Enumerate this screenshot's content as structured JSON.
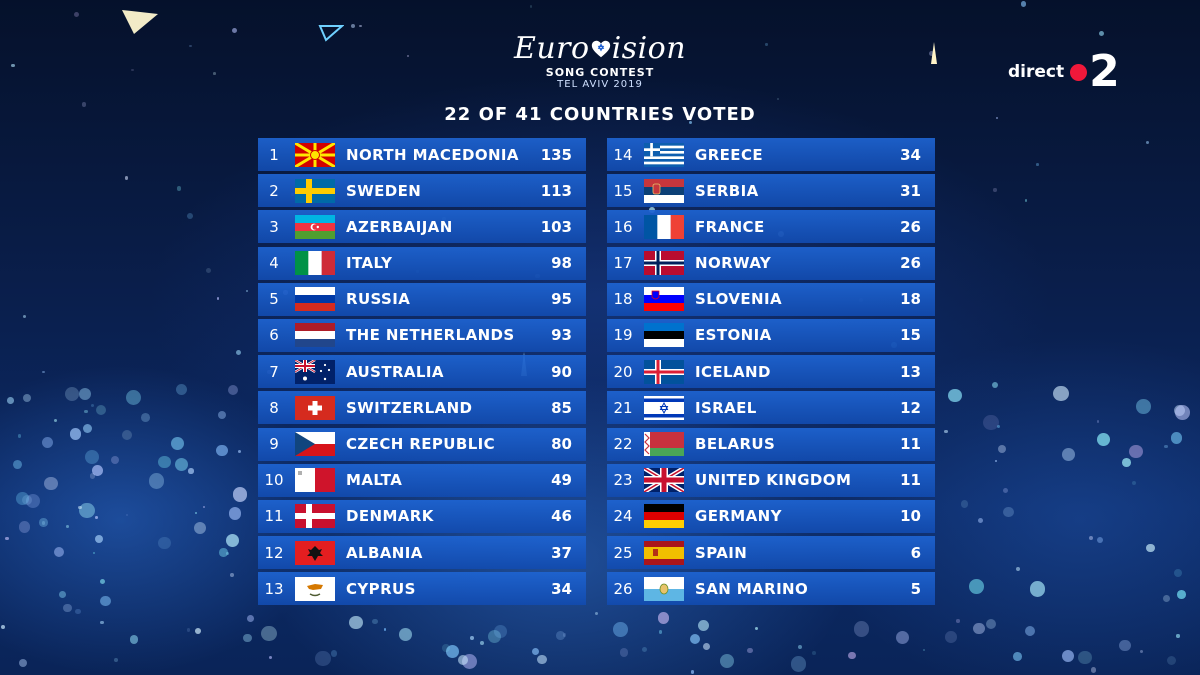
{
  "logo": {
    "brand": "EUROVISION",
    "subtitle": "SONG CONTEST",
    "location": "TEL AVIV 2019"
  },
  "headline": "22 OF 41 COUNTRIES VOTED",
  "broadcaster": {
    "label": "direct",
    "channel": "2"
  },
  "scoreboard": {
    "left": [
      {
        "rank": "1",
        "country": "NORTH MACEDONIA",
        "points": "135",
        "flag": "north-macedonia-flag-icon"
      },
      {
        "rank": "2",
        "country": "SWEDEN",
        "points": "113",
        "flag": "sweden-flag-icon"
      },
      {
        "rank": "3",
        "country": "AZERBAIJAN",
        "points": "103",
        "flag": "azerbaijan-flag-icon"
      },
      {
        "rank": "4",
        "country": "ITALY",
        "points": "98",
        "flag": "italy-flag-icon"
      },
      {
        "rank": "5",
        "country": "RUSSIA",
        "points": "95",
        "flag": "russia-flag-icon"
      },
      {
        "rank": "6",
        "country": "THE NETHERLANDS",
        "points": "93",
        "flag": "netherlands-flag-icon"
      },
      {
        "rank": "7",
        "country": "AUSTRALIA",
        "points": "90",
        "flag": "australia-flag-icon"
      },
      {
        "rank": "8",
        "country": "SWITZERLAND",
        "points": "85",
        "flag": "switzerland-flag-icon"
      },
      {
        "rank": "9",
        "country": "CZECH REPUBLIC",
        "points": "80",
        "flag": "czech-republic-flag-icon"
      },
      {
        "rank": "10",
        "country": "MALTA",
        "points": "49",
        "flag": "malta-flag-icon"
      },
      {
        "rank": "11",
        "country": "DENMARK",
        "points": "46",
        "flag": "denmark-flag-icon"
      },
      {
        "rank": "12",
        "country": "ALBANIA",
        "points": "37",
        "flag": "albania-flag-icon"
      },
      {
        "rank": "13",
        "country": "CYPRUS",
        "points": "34",
        "flag": "cyprus-flag-icon"
      }
    ],
    "right": [
      {
        "rank": "14",
        "country": "GREECE",
        "points": "34",
        "flag": "greece-flag-icon"
      },
      {
        "rank": "15",
        "country": "SERBIA",
        "points": "31",
        "flag": "serbia-flag-icon"
      },
      {
        "rank": "16",
        "country": "FRANCE",
        "points": "26",
        "flag": "france-flag-icon"
      },
      {
        "rank": "17",
        "country": "NORWAY",
        "points": "26",
        "flag": "norway-flag-icon"
      },
      {
        "rank": "18",
        "country": "SLOVENIA",
        "points": "18",
        "flag": "slovenia-flag-icon"
      },
      {
        "rank": "19",
        "country": "ESTONIA",
        "points": "15",
        "flag": "estonia-flag-icon"
      },
      {
        "rank": "20",
        "country": "ICELAND",
        "points": "13",
        "flag": "iceland-flag-icon"
      },
      {
        "rank": "21",
        "country": "ISRAEL",
        "points": "12",
        "flag": "israel-flag-icon"
      },
      {
        "rank": "22",
        "country": "BELARUS",
        "points": "11",
        "flag": "belarus-flag-icon"
      },
      {
        "rank": "23",
        "country": "UNITED KINGDOM",
        "points": "11",
        "flag": "united-kingdom-flag-icon"
      },
      {
        "rank": "24",
        "country": "GERMANY",
        "points": "10",
        "flag": "germany-flag-icon"
      },
      {
        "rank": "25",
        "country": "SPAIN",
        "points": "6",
        "flag": "spain-flag-icon"
      },
      {
        "rank": "26",
        "country": "SAN MARINO",
        "points": "5",
        "flag": "san-marino-flag-icon"
      }
    ]
  },
  "colors": {
    "row_top": "#1e64d2",
    "row_bottom": "#124baf",
    "background_dark": "#05112b",
    "background_light": "#0c2a66",
    "broadcaster_dot": "#f0183a",
    "text": "#ffffff"
  }
}
